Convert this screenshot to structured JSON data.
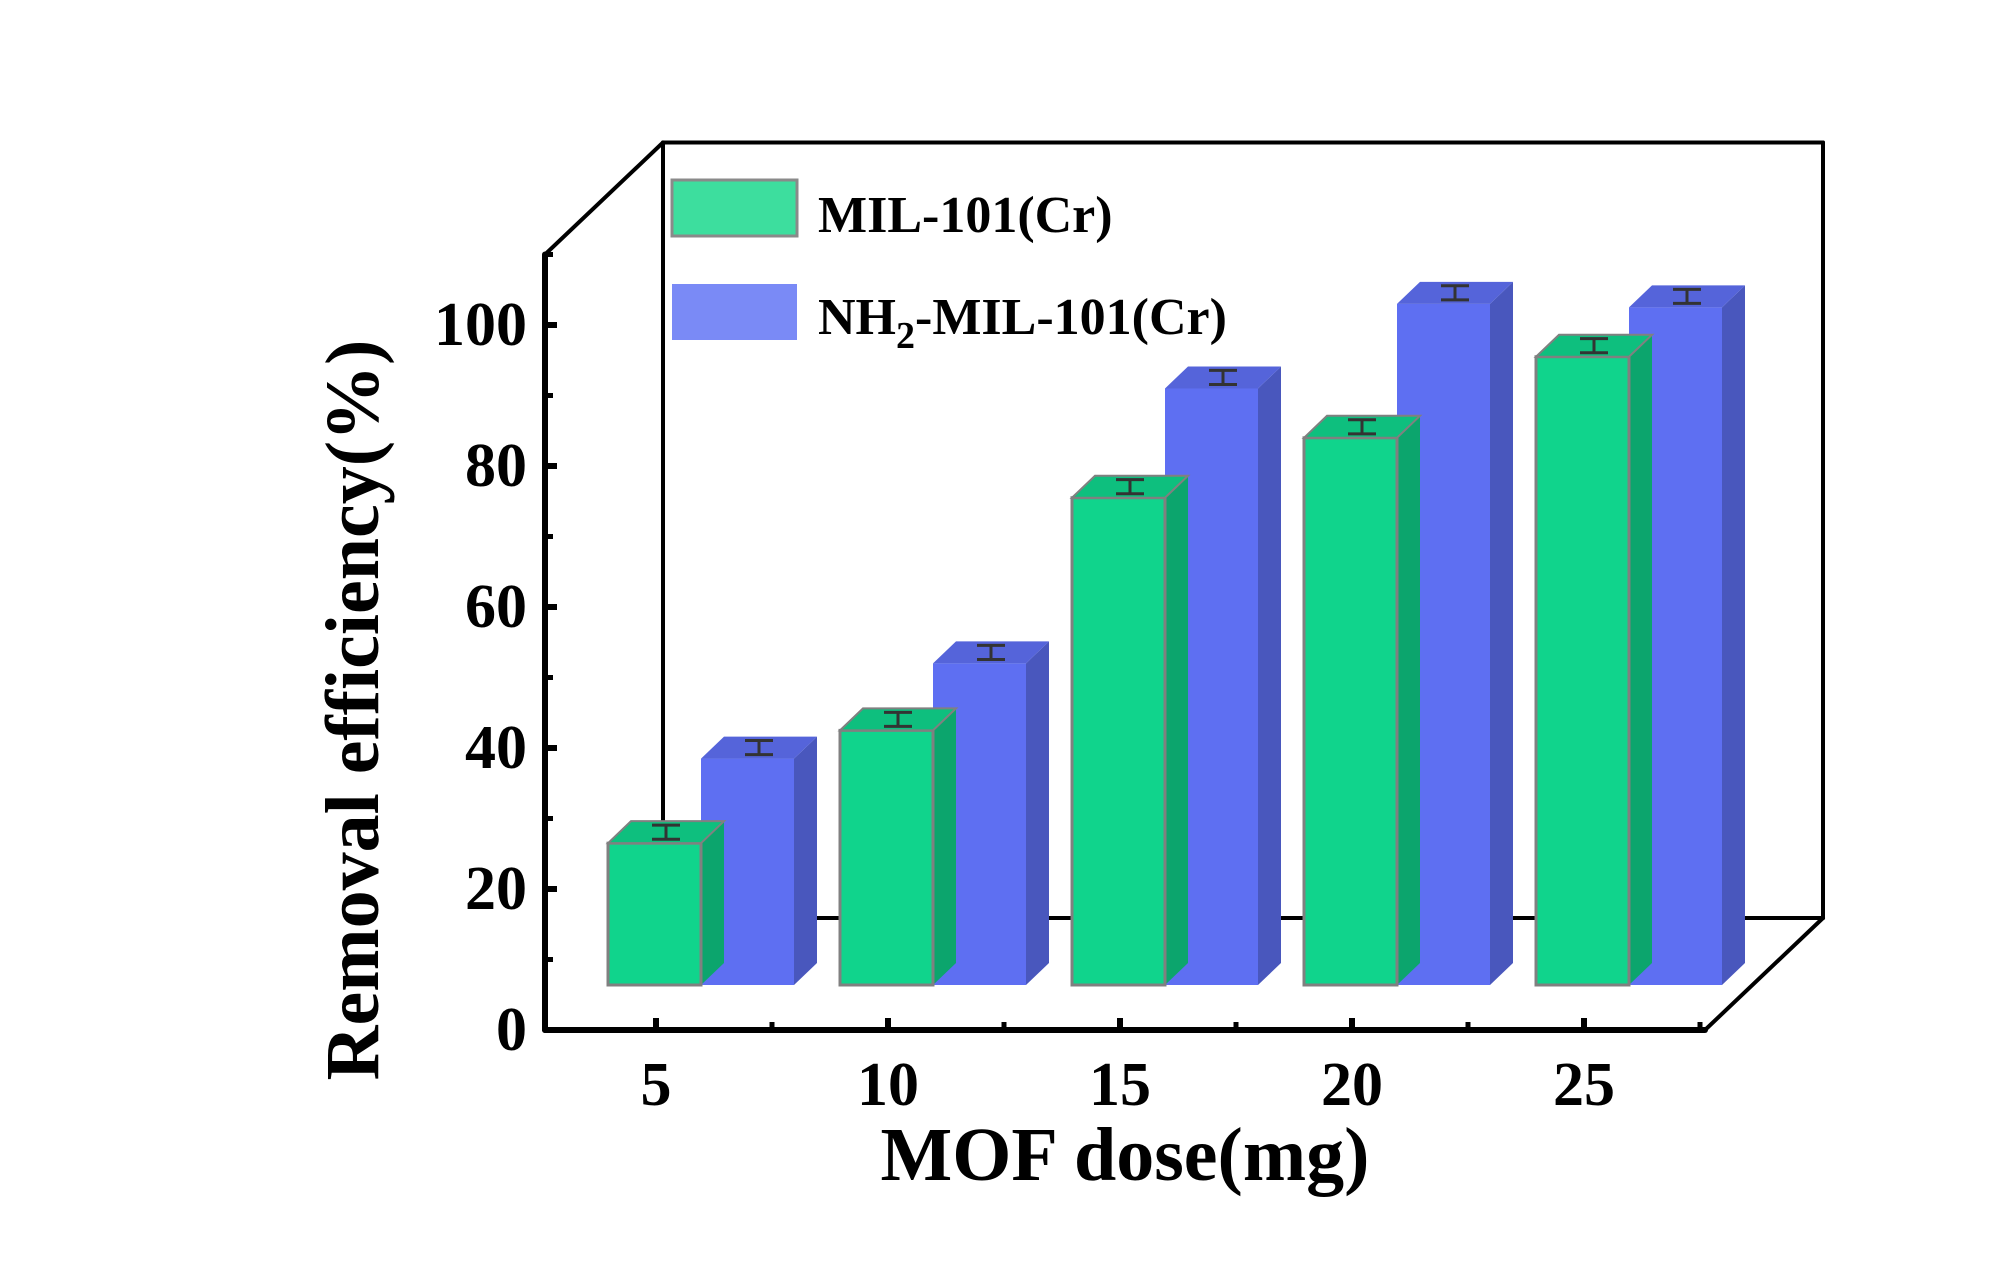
{
  "chart_data": {
    "type": "bar",
    "style": "3d",
    "title": "",
    "xlabel": "MOF dose(mg)",
    "ylabel": "Removal efficiency(%)",
    "categories": [
      "5",
      "10",
      "15",
      "20",
      "25"
    ],
    "ylim": [
      0,
      110
    ],
    "yticks": [
      0,
      20,
      40,
      60,
      80,
      100
    ],
    "legend_position": "top-left",
    "series": [
      {
        "name": "MIL-101(Cr)",
        "label_main": "MIL-101(Cr)",
        "color": "#10D48C",
        "legend_color": "#3DDE9E",
        "values": [
          26.5,
          42.5,
          75.5,
          84,
          95.5
        ],
        "errors": [
          1.0,
          1.0,
          1.0,
          1.0,
          1.0
        ]
      },
      {
        "name": "NH2-MIL-101(Cr)",
        "label_prefix": "NH",
        "label_sub": "2",
        "label_suffix": "-MIL-101(Cr)",
        "color": "#5E6FF2",
        "legend_color": "#7A8AF6",
        "values": [
          38.5,
          52,
          91,
          103,
          102.5
        ],
        "errors": [
          1.0,
          1.0,
          1.0,
          1.0,
          1.0
        ]
      }
    ]
  }
}
